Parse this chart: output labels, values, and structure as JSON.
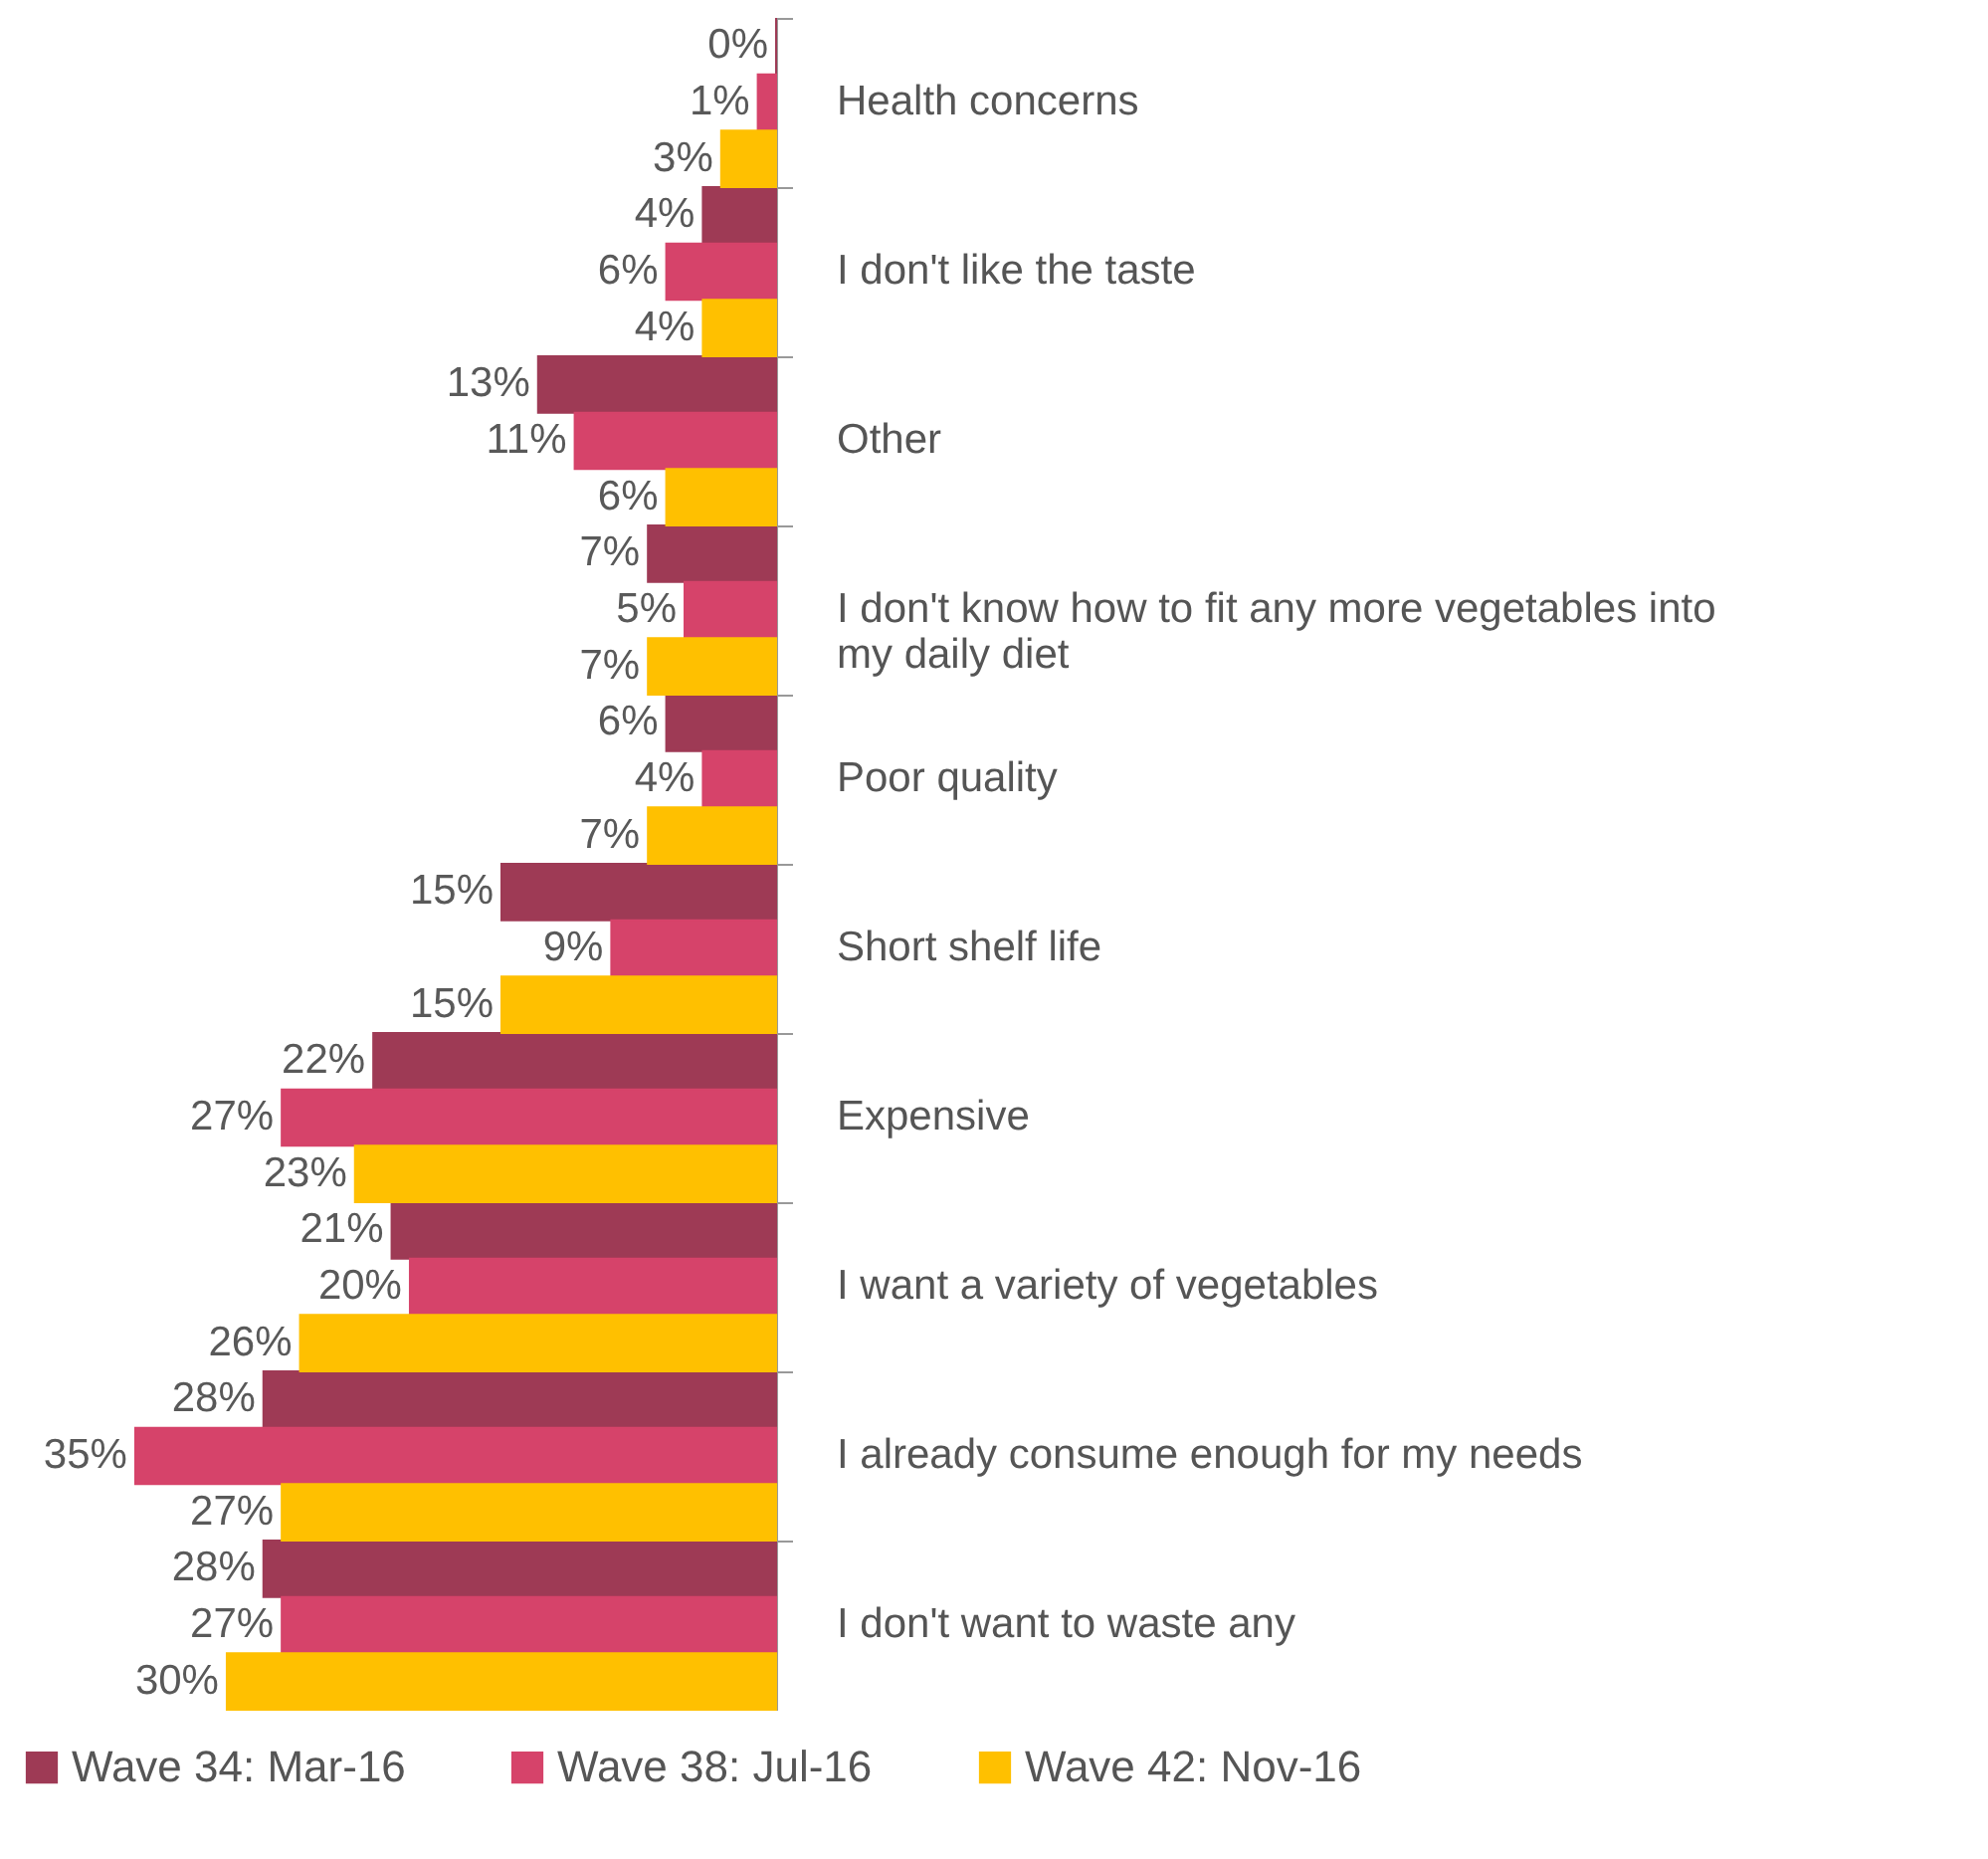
{
  "chart_data": {
    "type": "bar",
    "orientation": "horizontal",
    "legend": "bottom",
    "grid": false,
    "categories": [
      "Health concerns",
      "I don't like the taste",
      "Other",
      "I don't know how to fit any more vegetables into my daily diet",
      "Poor quality",
      "Short shelf life",
      "Expensive",
      "I want a variety of vegetables",
      "I already consume enough for my needs",
      "I don't want to waste any"
    ],
    "series": [
      {
        "name": "Wave 34: Mar-16",
        "color": "#9e3a55",
        "values": [
          0,
          4,
          13,
          7,
          6,
          15,
          22,
          21,
          28,
          28
        ],
        "value_labels": [
          "0%",
          "4%",
          "13%",
          "7%",
          "6%",
          "15%",
          "22%",
          "21%",
          "28%",
          "28%"
        ]
      },
      {
        "name": "Wave 38: Jul-16",
        "color": "#d6436a",
        "values": [
          1,
          6,
          11,
          5,
          4,
          9,
          27,
          20,
          35,
          27
        ],
        "value_labels": [
          "1%",
          "6%",
          "11%",
          "5%",
          "4%",
          "9%",
          "27%",
          "20%",
          "35%",
          "27%"
        ]
      },
      {
        "name": "Wave 42: Nov-16",
        "color": "#ffc000",
        "values": [
          3,
          4,
          6,
          7,
          7,
          15,
          23,
          26,
          27,
          30
        ],
        "value_labels": [
          "3%",
          "4%",
          "6%",
          "7%",
          "7%",
          "15%",
          "23%",
          "26%",
          "27%",
          "30%"
        ]
      }
    ]
  }
}
